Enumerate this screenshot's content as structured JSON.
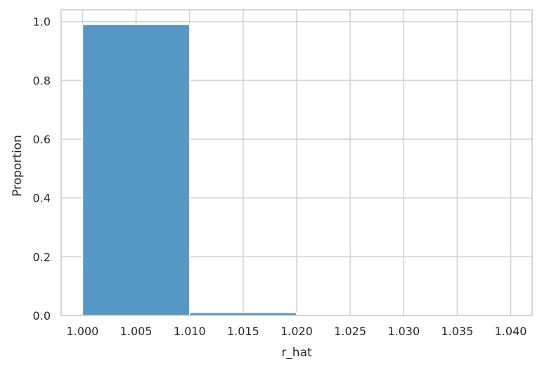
{
  "chart_data": {
    "type": "bar",
    "title": "",
    "xlabel": "r_hat",
    "ylabel": "Proportion",
    "xlim": [
      0.998,
      1.042
    ],
    "ylim": [
      0,
      1.04
    ],
    "grid": true,
    "legend": "none",
    "x_ticks": [
      {
        "value": 1.0,
        "label": "1.000"
      },
      {
        "value": 1.005,
        "label": "1.005"
      },
      {
        "value": 1.01,
        "label": "1.010"
      },
      {
        "value": 1.015,
        "label": "1.015"
      },
      {
        "value": 1.02,
        "label": "1.020"
      },
      {
        "value": 1.025,
        "label": "1.025"
      },
      {
        "value": 1.03,
        "label": "1.030"
      },
      {
        "value": 1.035,
        "label": "1.035"
      },
      {
        "value": 1.04,
        "label": "1.040"
      }
    ],
    "y_ticks": [
      {
        "value": 0.0,
        "label": "0.0"
      },
      {
        "value": 0.2,
        "label": "0.2"
      },
      {
        "value": 0.4,
        "label": "0.4"
      },
      {
        "value": 0.6,
        "label": "0.6"
      },
      {
        "value": 0.8,
        "label": "0.8"
      },
      {
        "value": 1.0,
        "label": "1.0"
      }
    ],
    "bins": [
      {
        "start": 1.0,
        "end": 1.01,
        "value": 0.99
      },
      {
        "start": 1.01,
        "end": 1.02,
        "value": 0.01
      },
      {
        "start": 1.02,
        "end": 1.03,
        "value": 0.0
      },
      {
        "start": 1.03,
        "end": 1.04,
        "value": 0.0
      }
    ],
    "bar_color": "#4c92c3",
    "bar_edge_color": "#ffffff",
    "grid_color": "#d4d4d4",
    "spine_color": "#cccccc"
  }
}
